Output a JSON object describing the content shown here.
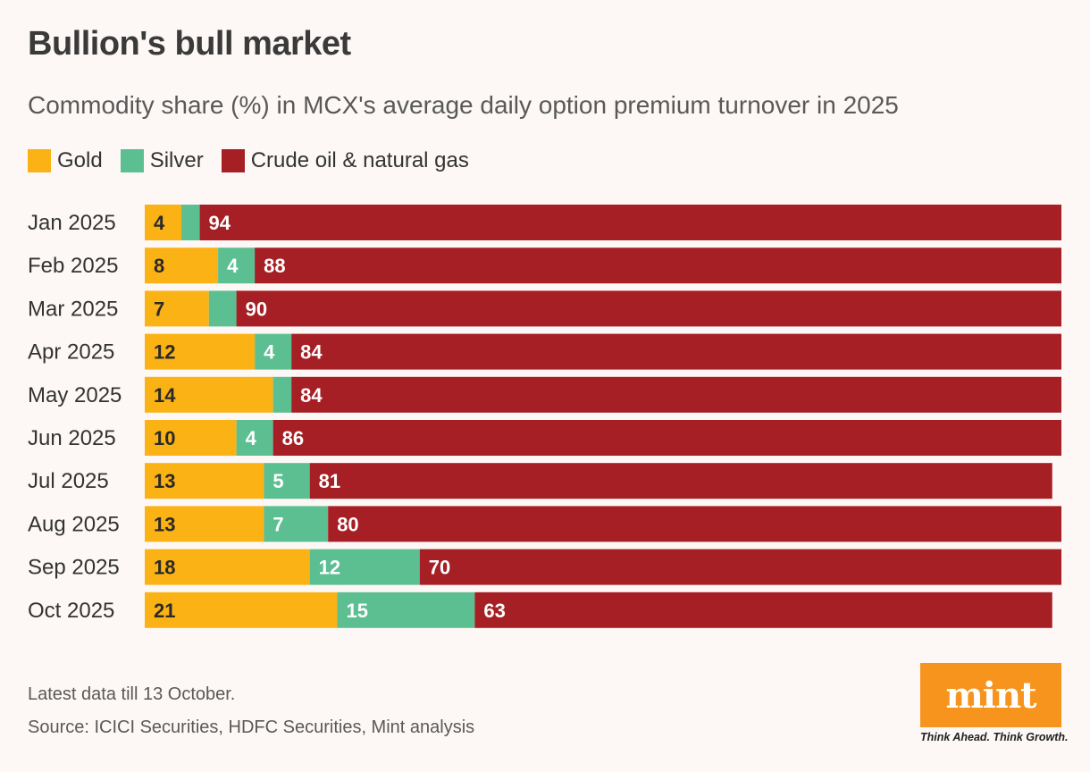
{
  "chart_data": {
    "type": "bar",
    "orientation": "horizontal",
    "stacked": true,
    "title": "Bullion's bull market",
    "subtitle": "Commodity share (%) in MCX's average daily option premium turnover in 2025",
    "categories": [
      "Jan 2025",
      "Feb 2025",
      "Mar 2025",
      "Apr 2025",
      "May 2025",
      "Jun 2025",
      "Jul 2025",
      "Aug 2025",
      "Sep 2025",
      "Oct 2025"
    ],
    "series": [
      {
        "name": "Gold",
        "color": "#fbb214",
        "values": [
          4,
          8,
          7,
          12,
          14,
          10,
          13,
          13,
          18,
          21
        ],
        "labels": [
          "4",
          "8",
          "7",
          "12",
          "14",
          "10",
          "13",
          "13",
          "18",
          "21"
        ]
      },
      {
        "name": "Silver",
        "color": "#5cbf92",
        "values": [
          2,
          4,
          3,
          4,
          2,
          4,
          5,
          7,
          12,
          15
        ],
        "labels": [
          "",
          "4",
          "",
          "4",
          "",
          "4",
          "5",
          "7",
          "12",
          "15"
        ]
      },
      {
        "name": "Crude oil & natural gas",
        "color": "#a51f24",
        "values": [
          94,
          88,
          90,
          84,
          84,
          86,
          81,
          80,
          70,
          63
        ],
        "labels": [
          "94",
          "88",
          "90",
          "84",
          "84",
          "86",
          "81",
          "80",
          "70",
          "63"
        ]
      }
    ],
    "xlim": [
      0,
      100
    ],
    "grid": false,
    "legend": "top-left"
  },
  "footnote": "Latest data till 13 October.",
  "source": "Source: ICICI Securities, HDFC Securities, Mint analysis",
  "logo": {
    "text": "mint",
    "tagline": "Think Ahead. Think Growth.",
    "color": "#f7941d"
  }
}
